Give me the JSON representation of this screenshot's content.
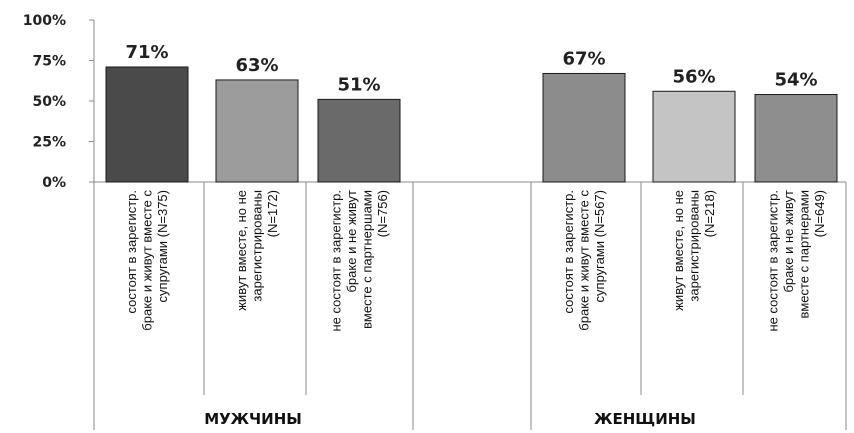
{
  "chart_data": {
    "type": "bar",
    "y_ticks": [
      "100%",
      "75%",
      "50%",
      "25%",
      "0%"
    ],
    "ylim": [
      0,
      100
    ],
    "grid": false,
    "legend": "none",
    "groups": [
      {
        "label": "МУЖЧИНЫ",
        "bars": [
          {
            "lines": [
              "состоят в зарегистр.",
              "браке и живут вместе с",
              "супругами (N=375)"
            ],
            "value": 71,
            "label": "71%",
            "color": "#4a4a4a"
          },
          {
            "lines": [
              "живут вместе, но не",
              "зарегистрированы",
              "(N=172)"
            ],
            "value": 63,
            "label": "63%",
            "color": "#9c9c9c"
          },
          {
            "lines": [
              "не состоят в зарегистр.",
              "браке и не живут",
              "вместе с партнершами",
              "(N=756)"
            ],
            "value": 51,
            "label": "51%",
            "color": "#6a6a6a"
          }
        ]
      },
      {
        "label": "ЖЕНЩИНЫ",
        "bars": [
          {
            "lines": [
              "состоят в зарегистр.",
              "браке и живут вместе с",
              "супругами (N=567)"
            ],
            "value": 67,
            "label": "67%",
            "color": "#8c8c8c"
          },
          {
            "lines": [
              "живут вместе, но не",
              "зарегистрированы",
              "(N=218)"
            ],
            "value": 56,
            "label": "56%",
            "color": "#c4c4c4"
          },
          {
            "lines": [
              "не состоят в зарегистр.",
              "браке и не живут",
              "вместе с партнерами",
              "(N=649)"
            ],
            "value": 54,
            "label": "54%",
            "color": "#8e8e8e"
          }
        ]
      }
    ]
  }
}
